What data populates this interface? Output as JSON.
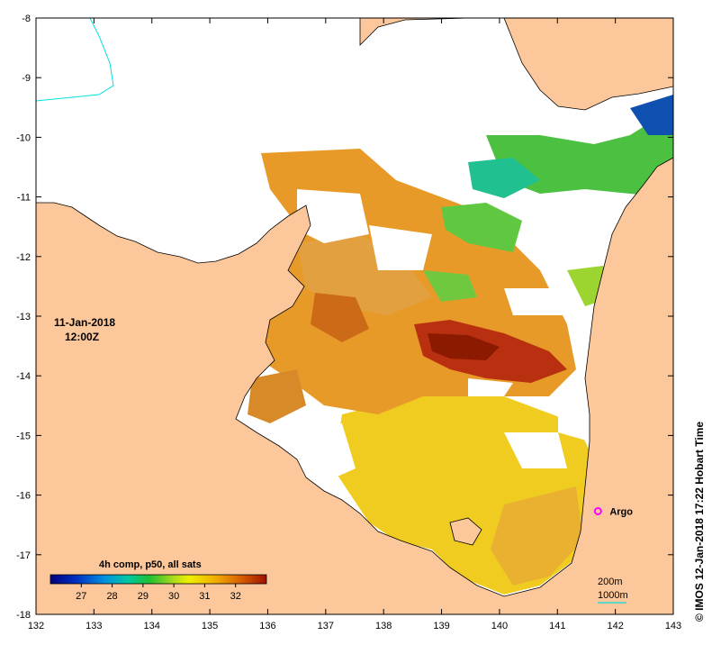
{
  "map": {
    "lon_range": [
      132,
      143
    ],
    "lat_range": [
      -18,
      -8
    ],
    "x_ticks": [
      132,
      133,
      134,
      135,
      136,
      137,
      138,
      139,
      140,
      141,
      142,
      143
    ],
    "y_ticks": [
      -8,
      -9,
      -10,
      -11,
      -12,
      -13,
      -14,
      -15,
      -16,
      -17,
      -18
    ],
    "land_color": "#fcc89b",
    "nodata_color": "#ffffff"
  },
  "date": {
    "line1": "11-Jan-2018",
    "line2": "12:00Z"
  },
  "legend": {
    "title": "4h comp, p50, all sats",
    "ticks": [
      "27",
      "28",
      "29",
      "30",
      "31",
      "32"
    ],
    "range": [
      26,
      33
    ]
  },
  "argo": {
    "label": "Argo",
    "lon": 141.7,
    "lat": -16.27,
    "color": "#ff00ff"
  },
  "contours": {
    "line1": "200m",
    "line2": "1000m",
    "color": "#00e0e0"
  },
  "credit": "© IMOS 12-Jan-2018 17:22 Hobart Time"
}
